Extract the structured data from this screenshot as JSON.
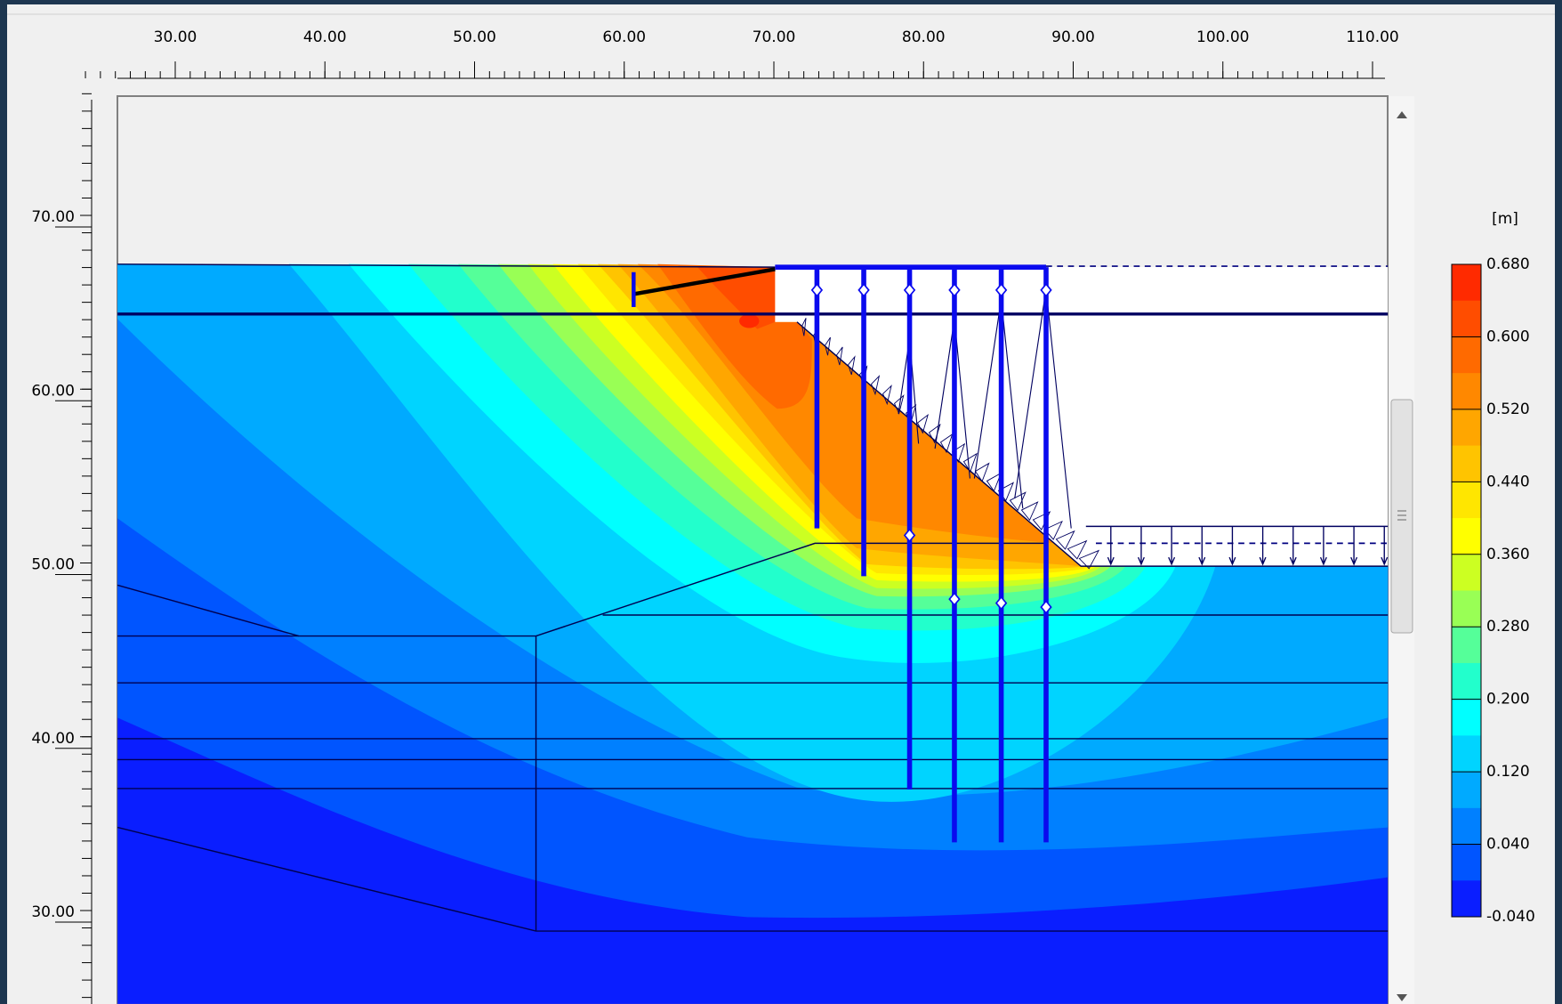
{
  "top_ruler": {
    "ticks": [
      {
        "value": 30,
        "label": "30.00"
      },
      {
        "value": 40,
        "label": "40.00"
      },
      {
        "value": 50,
        "label": "50.00"
      },
      {
        "value": 60,
        "label": "60.00"
      },
      {
        "value": 70,
        "label": "70.00"
      },
      {
        "value": 80,
        "label": "80.00"
      },
      {
        "value": 90,
        "label": "90.00"
      },
      {
        "value": 100,
        "label": "100.00"
      },
      {
        "value": 110,
        "label": "110.00"
      }
    ]
  },
  "left_ruler": {
    "ticks": [
      {
        "value": 70,
        "label": "70.00"
      },
      {
        "value": 60,
        "label": "60.00"
      },
      {
        "value": 50,
        "label": "50.00"
      },
      {
        "value": 40,
        "label": "40.00"
      },
      {
        "value": 30,
        "label": "30.00"
      }
    ]
  },
  "legend": {
    "unit": "[m]",
    "ticks": [
      {
        "value": 0.68,
        "label": "0.680"
      },
      {
        "value": 0.6,
        "label": "0.600"
      },
      {
        "value": 0.52,
        "label": "0.520"
      },
      {
        "value": 0.44,
        "label": "0.440"
      },
      {
        "value": 0.36,
        "label": "0.360"
      },
      {
        "value": 0.28,
        "label": "0.280"
      },
      {
        "value": 0.2,
        "label": "0.200"
      },
      {
        "value": 0.12,
        "label": "0.120"
      },
      {
        "value": 0.04,
        "label": "0.040"
      },
      {
        "value": -0.04,
        "label": "-0.040"
      }
    ],
    "band_colors": [
      "#ff2a00",
      "#ff4d00",
      "#ff6a00",
      "#ff8800",
      "#ffa600",
      "#ffc400",
      "#ffe600",
      "#ffff00",
      "#ccff22",
      "#99ff55",
      "#55ff99",
      "#22ffcc",
      "#00ffff",
      "#00d4ff",
      "#00aaff",
      "#0080ff",
      "#0055ff",
      "#0a1eff"
    ]
  }
}
